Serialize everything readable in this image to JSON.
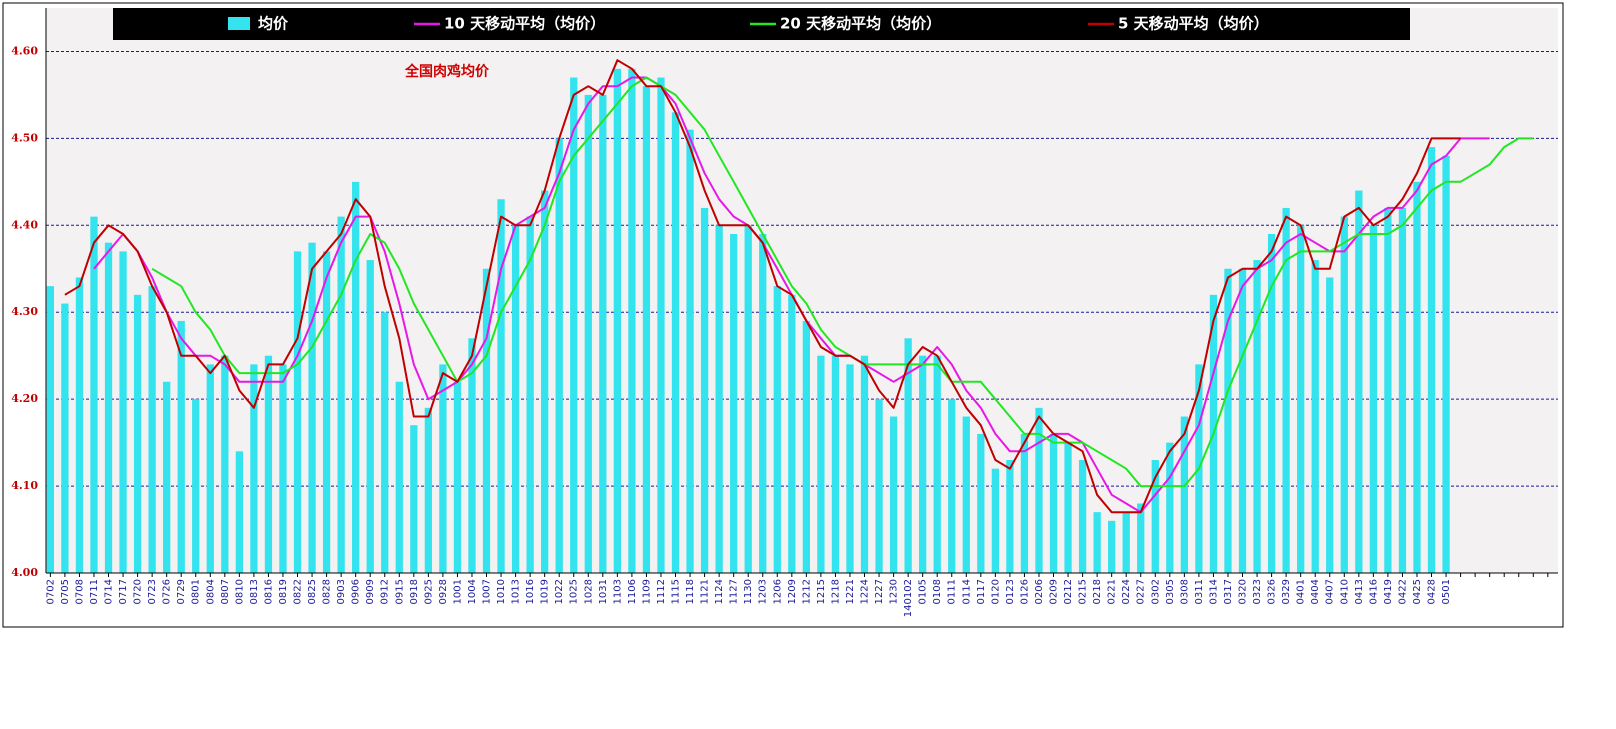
{
  "chart_data": {
    "type": "combo",
    "annotation": "全国肉鸡均价",
    "legend": "top",
    "grid": true,
    "categories": [
      "0702",
      "0705",
      "0708",
      "0711",
      "0714",
      "0717",
      "0720",
      "0723",
      "0726",
      "0729",
      "0801",
      "0804",
      "0807",
      "0810",
      "0813",
      "0816",
      "0819",
      "0822",
      "0825",
      "0828",
      "0903",
      "0906",
      "0909",
      "0912",
      "0915",
      "0918",
      "0925",
      "0928",
      "1001",
      "1004",
      "1007",
      "1010",
      "1013",
      "1016",
      "1019",
      "1022",
      "1025",
      "1028",
      "1031",
      "1103",
      "1106",
      "1109",
      "1112",
      "1115",
      "1118",
      "1121",
      "1124",
      "1127",
      "1130",
      "1203",
      "1206",
      "1209",
      "1212",
      "1215",
      "1218",
      "1221",
      "1224",
      "1227",
      "1230",
      "140102",
      "0105",
      "0108",
      "0111",
      "0114",
      "0117",
      "0120",
      "0123",
      "0126",
      "0206",
      "0209",
      "0212",
      "0215",
      "0218",
      "0221",
      "0224",
      "0227",
      "0302",
      "0305",
      "0308",
      "0311",
      "0314",
      "0317",
      "0320",
      "0323",
      "0326",
      "0329",
      "0401",
      "0404",
      "0407",
      "0410",
      "0413",
      "0416",
      "0419",
      "0422",
      "0425",
      "0428",
      "0501",
      null,
      null,
      null,
      null,
      null,
      null,
      null
    ],
    "ylim": [
      4.0,
      4.65
    ],
    "yticks": [
      {
        "value": 4.0,
        "label": "4.00"
      },
      {
        "value": 4.1,
        "label": "4.10"
      },
      {
        "value": 4.2,
        "label": "4.20"
      },
      {
        "value": 4.3,
        "label": "4.30"
      },
      {
        "value": 4.4,
        "label": "4.40"
      },
      {
        "value": 4.5,
        "label": "4.50"
      },
      {
        "value": 4.6,
        "label": "4.60"
      }
    ],
    "series": [
      {
        "name": "均价",
        "type": "bar",
        "color": "#33e3ee",
        "values": [
          4.33,
          4.31,
          4.34,
          4.41,
          4.38,
          4.37,
          4.32,
          4.33,
          4.22,
          4.29,
          4.2,
          4.24,
          4.25,
          4.14,
          4.24,
          4.25,
          4.24,
          4.37,
          4.38,
          4.37,
          4.41,
          4.45,
          4.36,
          4.3,
          4.22,
          4.17,
          4.19,
          4.24,
          4.22,
          4.27,
          4.35,
          4.43,
          4.4,
          4.41,
          4.44,
          4.5,
          4.57,
          4.55,
          4.55,
          4.58,
          4.58,
          4.56,
          4.57,
          4.53,
          4.51,
          4.42,
          4.4,
          4.39,
          4.4,
          4.39,
          4.33,
          4.32,
          4.29,
          4.25,
          4.25,
          4.24,
          4.25,
          4.2,
          4.18,
          4.27,
          4.25,
          4.25,
          4.2,
          4.18,
          4.16,
          4.12,
          4.13,
          4.16,
          4.19,
          4.16,
          4.15,
          4.13,
          4.07,
          4.06,
          4.07,
          4.08,
          4.13,
          4.15,
          4.18,
          4.24,
          4.32,
          4.35,
          4.35,
          4.36,
          4.39,
          4.42,
          4.4,
          4.36,
          4.34,
          4.41,
          4.44,
          4.4,
          4.42,
          4.42,
          4.45,
          4.49,
          4.48,
          null,
          null,
          null,
          null,
          null,
          null,
          null
        ]
      },
      {
        "name": "10 天移动平均（均价）",
        "type": "line",
        "color": "#e619e6",
        "values": [
          null,
          null,
          null,
          4.35,
          4.37,
          4.39,
          4.37,
          4.34,
          4.3,
          4.27,
          4.25,
          4.25,
          4.24,
          4.22,
          4.22,
          4.22,
          4.22,
          4.25,
          4.29,
          4.34,
          4.38,
          4.41,
          4.41,
          4.37,
          4.31,
          4.24,
          4.2,
          4.21,
          4.22,
          4.24,
          4.27,
          4.35,
          4.4,
          4.41,
          4.42,
          4.46,
          4.51,
          4.54,
          4.56,
          4.56,
          4.57,
          4.57,
          4.56,
          4.54,
          4.5,
          4.46,
          4.43,
          4.41,
          4.4,
          4.38,
          4.35,
          4.32,
          4.29,
          4.27,
          4.25,
          4.25,
          4.24,
          4.23,
          4.22,
          4.23,
          4.24,
          4.26,
          4.24,
          4.21,
          4.19,
          4.16,
          4.14,
          4.14,
          4.15,
          4.16,
          4.16,
          4.15,
          4.12,
          4.09,
          4.08,
          4.07,
          4.09,
          4.11,
          4.14,
          4.17,
          4.23,
          4.29,
          4.33,
          4.35,
          4.36,
          4.38,
          4.39,
          4.38,
          4.37,
          4.37,
          4.39,
          4.41,
          4.42,
          4.42,
          4.44,
          4.47,
          4.48,
          4.5,
          4.5,
          4.5,
          null,
          null,
          null,
          null
        ]
      },
      {
        "name": "20 天移动平均（均价）",
        "type": "line",
        "color": "#22e622",
        "values": [
          null,
          null,
          null,
          null,
          null,
          null,
          null,
          4.35,
          4.34,
          4.33,
          4.3,
          4.28,
          4.25,
          4.23,
          4.23,
          4.23,
          4.23,
          4.24,
          4.26,
          4.29,
          4.32,
          4.36,
          4.39,
          4.38,
          4.35,
          4.31,
          4.28,
          4.25,
          4.22,
          4.23,
          4.25,
          4.3,
          4.33,
          4.36,
          4.4,
          4.45,
          4.48,
          4.5,
          4.52,
          4.54,
          4.56,
          4.57,
          4.56,
          4.55,
          4.53,
          4.51,
          4.48,
          4.45,
          4.42,
          4.39,
          4.36,
          4.33,
          4.31,
          4.28,
          4.26,
          4.25,
          4.24,
          4.24,
          4.24,
          4.24,
          4.24,
          4.24,
          4.22,
          4.22,
          4.22,
          4.2,
          4.18,
          4.16,
          4.16,
          4.15,
          4.15,
          4.15,
          4.14,
          4.13,
          4.12,
          4.1,
          4.1,
          4.1,
          4.1,
          4.12,
          4.16,
          4.21,
          4.25,
          4.29,
          4.33,
          4.36,
          4.37,
          4.37,
          4.37,
          4.38,
          4.39,
          4.39,
          4.39,
          4.4,
          4.42,
          4.44,
          4.45,
          4.45,
          4.46,
          4.47,
          4.49,
          4.5,
          4.5,
          null
        ]
      },
      {
        "name": "5 天移动平均（均价）",
        "type": "line",
        "color": "#c00000",
        "values": [
          null,
          4.32,
          4.33,
          4.38,
          4.4,
          4.39,
          4.37,
          4.33,
          4.3,
          4.25,
          4.25,
          4.23,
          4.25,
          4.21,
          4.19,
          4.24,
          4.24,
          4.27,
          4.35,
          4.37,
          4.39,
          4.43,
          4.41,
          4.33,
          4.27,
          4.18,
          4.18,
          4.23,
          4.22,
          4.25,
          4.33,
          4.41,
          4.4,
          4.4,
          4.44,
          4.5,
          4.55,
          4.56,
          4.55,
          4.59,
          4.58,
          4.56,
          4.56,
          4.53,
          4.49,
          4.44,
          4.4,
          4.4,
          4.4,
          4.38,
          4.33,
          4.32,
          4.29,
          4.26,
          4.25,
          4.25,
          4.24,
          4.21,
          4.19,
          4.24,
          4.26,
          4.25,
          4.22,
          4.19,
          4.17,
          4.13,
          4.12,
          4.15,
          4.18,
          4.16,
          4.15,
          4.14,
          4.09,
          4.07,
          4.07,
          4.07,
          4.11,
          4.14,
          4.16,
          4.21,
          4.29,
          4.34,
          4.35,
          4.35,
          4.37,
          4.41,
          4.4,
          4.35,
          4.35,
          4.41,
          4.42,
          4.4,
          4.41,
          4.43,
          4.46,
          4.5,
          4.5,
          4.5,
          null,
          null,
          null,
          null,
          null,
          null
        ]
      }
    ]
  }
}
